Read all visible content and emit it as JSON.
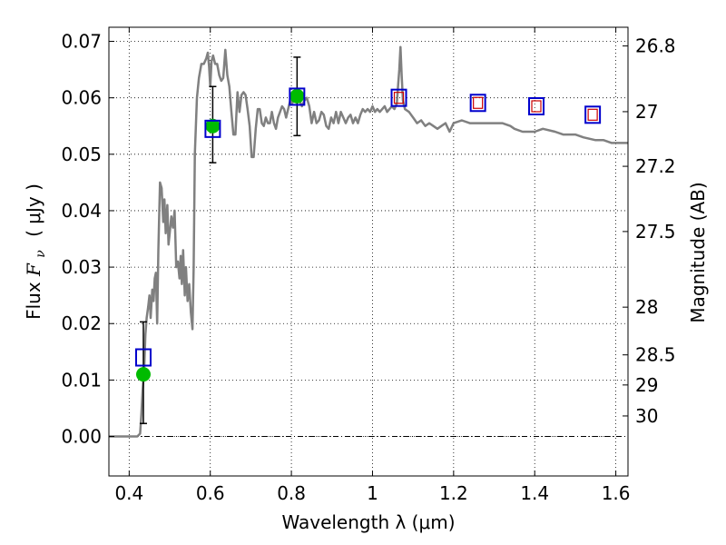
{
  "chart_data": {
    "type": "scatter",
    "xlabel": "Wavelength  λ (μm)",
    "ylabel": {
      "prefix": "Flux  ",
      "symbol": "F",
      "sub": "ν",
      "unit": "( μJy )"
    },
    "ylabel_right": "Magnitude (AB)",
    "xlim": [
      0.35,
      1.63
    ],
    "ylim": [
      -0.007,
      0.0725
    ],
    "grid": true,
    "x_ticks": [
      {
        "value": 0.4,
        "label": "0.4"
      },
      {
        "value": 0.6,
        "label": "0.6"
      },
      {
        "value": 0.8,
        "label": "0.8"
      },
      {
        "value": 1.0,
        "label": "1"
      },
      {
        "value": 1.2,
        "label": "1.2"
      },
      {
        "value": 1.4,
        "label": "1.4"
      },
      {
        "value": 1.6,
        "label": "1.6"
      }
    ],
    "y_ticks": [
      {
        "value": 0.0,
        "label": "0.00"
      },
      {
        "value": 0.01,
        "label": "0.01"
      },
      {
        "value": 0.02,
        "label": "0.02"
      },
      {
        "value": 0.03,
        "label": "0.03"
      },
      {
        "value": 0.04,
        "label": "0.04"
      },
      {
        "value": 0.05,
        "label": "0.05"
      },
      {
        "value": 0.06,
        "label": "0.06"
      },
      {
        "value": 0.07,
        "label": "0.07"
      }
    ],
    "right_ticks": [
      {
        "label": "26.8",
        "mag": 26.8
      },
      {
        "label": "27",
        "mag": 27.0
      },
      {
        "label": "27.2",
        "mag": 27.2
      },
      {
        "label": "27.5",
        "mag": 27.5
      },
      {
        "label": "28",
        "mag": 28.0
      },
      {
        "label": "28.5",
        "mag": 28.5
      },
      {
        "label": "29",
        "mag": 29.0
      },
      {
        "label": "30",
        "mag": 30.0
      }
    ],
    "zero_line": 0.0,
    "colors": {
      "sed": "#808080",
      "model_box": "#0000cc",
      "model_small": "#cc0000",
      "observed": "#00bb00",
      "errorbar": "#000000"
    },
    "sed_model": [
      [
        0.35,
        0.0
      ],
      [
        0.42,
        0.0
      ],
      [
        0.427,
        0.0005
      ],
      [
        0.43,
        0.004
      ],
      [
        0.433,
        0.008
      ],
      [
        0.437,
        0.012
      ],
      [
        0.44,
        0.018
      ],
      [
        0.443,
        0.021
      ],
      [
        0.447,
        0.023
      ],
      [
        0.45,
        0.025
      ],
      [
        0.453,
        0.021
      ],
      [
        0.457,
        0.026
      ],
      [
        0.46,
        0.024
      ],
      [
        0.463,
        0.028
      ],
      [
        0.466,
        0.029
      ],
      [
        0.469,
        0.02
      ],
      [
        0.472,
        0.033
      ],
      [
        0.476,
        0.045
      ],
      [
        0.48,
        0.044
      ],
      [
        0.484,
        0.038
      ],
      [
        0.487,
        0.042
      ],
      [
        0.49,
        0.036
      ],
      [
        0.494,
        0.041
      ],
      [
        0.497,
        0.034
      ],
      [
        0.5,
        0.036
      ],
      [
        0.504,
        0.039
      ],
      [
        0.508,
        0.037
      ],
      [
        0.512,
        0.04
      ],
      [
        0.516,
        0.03
      ],
      [
        0.52,
        0.031
      ],
      [
        0.524,
        0.028
      ],
      [
        0.527,
        0.032
      ],
      [
        0.53,
        0.027
      ],
      [
        0.533,
        0.033
      ],
      [
        0.537,
        0.025
      ],
      [
        0.54,
        0.03
      ],
      [
        0.544,
        0.024
      ],
      [
        0.548,
        0.027
      ],
      [
        0.552,
        0.022
      ],
      [
        0.556,
        0.019
      ],
      [
        0.559,
        0.03
      ],
      [
        0.562,
        0.05
      ],
      [
        0.567,
        0.06
      ],
      [
        0.572,
        0.0635
      ],
      [
        0.578,
        0.066
      ],
      [
        0.584,
        0.066
      ],
      [
        0.59,
        0.067
      ],
      [
        0.594,
        0.068
      ],
      [
        0.597,
        0.0655
      ],
      [
        0.6,
        0.062
      ],
      [
        0.603,
        0.0665
      ],
      [
        0.607,
        0.0675
      ],
      [
        0.612,
        0.066
      ],
      [
        0.617,
        0.066
      ],
      [
        0.622,
        0.064
      ],
      [
        0.627,
        0.063
      ],
      [
        0.632,
        0.0635
      ],
      [
        0.637,
        0.0685
      ],
      [
        0.642,
        0.064
      ],
      [
        0.647,
        0.062
      ],
      [
        0.652,
        0.0575
      ],
      [
        0.657,
        0.0535
      ],
      [
        0.662,
        0.0535
      ],
      [
        0.667,
        0.061
      ],
      [
        0.672,
        0.0575
      ],
      [
        0.677,
        0.0605
      ],
      [
        0.682,
        0.061
      ],
      [
        0.687,
        0.0605
      ],
      [
        0.692,
        0.058
      ],
      [
        0.697,
        0.055
      ],
      [
        0.702,
        0.0495
      ],
      [
        0.707,
        0.0495
      ],
      [
        0.712,
        0.0545
      ],
      [
        0.717,
        0.058
      ],
      [
        0.722,
        0.058
      ],
      [
        0.727,
        0.0555
      ],
      [
        0.732,
        0.055
      ],
      [
        0.737,
        0.0565
      ],
      [
        0.742,
        0.0555
      ],
      [
        0.747,
        0.0555
      ],
      [
        0.752,
        0.0575
      ],
      [
        0.757,
        0.0555
      ],
      [
        0.762,
        0.0545
      ],
      [
        0.767,
        0.0565
      ],
      [
        0.772,
        0.0575
      ],
      [
        0.777,
        0.0585
      ],
      [
        0.782,
        0.058
      ],
      [
        0.787,
        0.0565
      ],
      [
        0.792,
        0.058
      ],
      [
        0.797,
        0.0595
      ],
      [
        0.802,
        0.059
      ],
      [
        0.808,
        0.06
      ],
      [
        0.814,
        0.061
      ],
      [
        0.82,
        0.0595
      ],
      [
        0.826,
        0.0585
      ],
      [
        0.832,
        0.0595
      ],
      [
        0.838,
        0.06
      ],
      [
        0.844,
        0.0585
      ],
      [
        0.85,
        0.0555
      ],
      [
        0.856,
        0.0575
      ],
      [
        0.862,
        0.0555
      ],
      [
        0.868,
        0.056
      ],
      [
        0.874,
        0.0575
      ],
      [
        0.88,
        0.057
      ],
      [
        0.886,
        0.055
      ],
      [
        0.892,
        0.0545
      ],
      [
        0.898,
        0.0565
      ],
      [
        0.904,
        0.0555
      ],
      [
        0.91,
        0.0575
      ],
      [
        0.916,
        0.0555
      ],
      [
        0.922,
        0.0575
      ],
      [
        0.928,
        0.0565
      ],
      [
        0.934,
        0.0555
      ],
      [
        0.94,
        0.0565
      ],
      [
        0.946,
        0.057
      ],
      [
        0.952,
        0.0555
      ],
      [
        0.958,
        0.0565
      ],
      [
        0.964,
        0.0555
      ],
      [
        0.97,
        0.057
      ],
      [
        0.976,
        0.058
      ],
      [
        0.982,
        0.0575
      ],
      [
        0.988,
        0.058
      ],
      [
        0.994,
        0.0575
      ],
      [
        1.0,
        0.0585
      ],
      [
        1.006,
        0.0575
      ],
      [
        1.012,
        0.058
      ],
      [
        1.018,
        0.0575
      ],
      [
        1.024,
        0.058
      ],
      [
        1.03,
        0.0585
      ],
      [
        1.036,
        0.0575
      ],
      [
        1.042,
        0.058
      ],
      [
        1.048,
        0.0585
      ],
      [
        1.054,
        0.058
      ],
      [
        1.06,
        0.059
      ],
      [
        1.063,
        0.062
      ],
      [
        1.066,
        0.065
      ],
      [
        1.069,
        0.069
      ],
      [
        1.072,
        0.064
      ],
      [
        1.075,
        0.0595
      ],
      [
        1.08,
        0.058
      ],
      [
        1.09,
        0.0575
      ],
      [
        1.1,
        0.0565
      ],
      [
        1.11,
        0.0555
      ],
      [
        1.12,
        0.056
      ],
      [
        1.13,
        0.055
      ],
      [
        1.14,
        0.0555
      ],
      [
        1.15,
        0.055
      ],
      [
        1.16,
        0.0545
      ],
      [
        1.17,
        0.055
      ],
      [
        1.18,
        0.0555
      ],
      [
        1.19,
        0.054
      ],
      [
        1.2,
        0.0555
      ],
      [
        1.22,
        0.056
      ],
      [
        1.24,
        0.0555
      ],
      [
        1.26,
        0.0555
      ],
      [
        1.28,
        0.0555
      ],
      [
        1.3,
        0.0555
      ],
      [
        1.32,
        0.0555
      ],
      [
        1.34,
        0.055
      ],
      [
        1.35,
        0.0545
      ],
      [
        1.37,
        0.054
      ],
      [
        1.4,
        0.054
      ],
      [
        1.42,
        0.0545
      ],
      [
        1.45,
        0.054
      ],
      [
        1.47,
        0.0535
      ],
      [
        1.5,
        0.0535
      ],
      [
        1.52,
        0.053
      ],
      [
        1.55,
        0.0525
      ],
      [
        1.57,
        0.0525
      ],
      [
        1.59,
        0.052
      ],
      [
        1.6,
        0.052
      ],
      [
        1.63,
        0.052
      ]
    ],
    "model_photometry": [
      {
        "x": 0.435,
        "y": 0.014
      },
      {
        "x": 0.606,
        "y": 0.0545
      },
      {
        "x": 0.814,
        "y": 0.0602
      },
      {
        "x": 1.065,
        "y": 0.06
      },
      {
        "x": 1.26,
        "y": 0.0591
      },
      {
        "x": 1.404,
        "y": 0.0585
      },
      {
        "x": 1.543,
        "y": 0.057
      }
    ],
    "model_photometry_inner": [
      {
        "x": 1.065,
        "y": 0.06
      },
      {
        "x": 1.26,
        "y": 0.0591
      },
      {
        "x": 1.404,
        "y": 0.0585
      },
      {
        "x": 1.543,
        "y": 0.057
      }
    ],
    "observed": [
      {
        "x": 0.435,
        "y": 0.011,
        "yerr_low": 0.0023,
        "yerr_high": 0.0203
      },
      {
        "x": 0.606,
        "y": 0.055,
        "yerr_low": 0.0485,
        "yerr_high": 0.062
      },
      {
        "x": 0.814,
        "y": 0.0603,
        "yerr_low": 0.0533,
        "yerr_high": 0.0672
      }
    ]
  }
}
